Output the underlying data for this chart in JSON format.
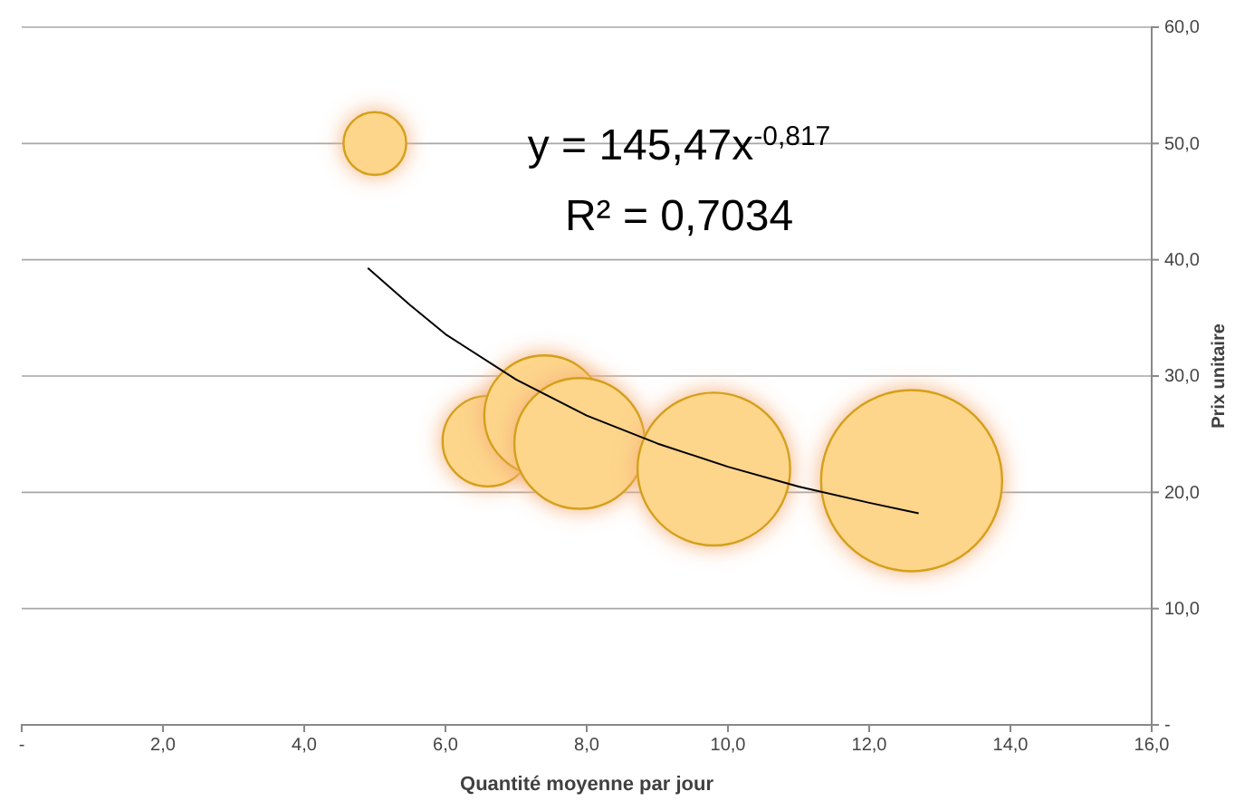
{
  "chart_data": {
    "type": "bubble",
    "xlabel": "Quantité moyenne par jour",
    "ylabel": "Prix unitaire",
    "x": [
      5.0,
      6.6,
      7.4,
      7.9,
      9.8,
      12.6
    ],
    "values": [
      50.0,
      24.4,
      26.6,
      24.2,
      22.0,
      21.0
    ],
    "sizes": [
      0.12,
      0.25,
      0.44,
      0.52,
      0.71,
      1
    ],
    "color": "#fdd58b",
    "series": [
      {
        "type": "line",
        "color": "#000000",
        "marker": "none",
        "x": [
          4.9,
          5.5,
          6,
          7,
          8,
          9,
          10,
          11,
          12,
          12.7
        ],
        "values": [
          39.3,
          36.1,
          33.6,
          29.7,
          26.6,
          24.2,
          22.2,
          20.5,
          19.1,
          18.2
        ]
      }
    ],
    "xlim": [
      0,
      16
    ],
    "xticks": [
      {
        "value": 0,
        "label": "-"
      },
      {
        "value": 2,
        "label": "2,0"
      },
      {
        "value": 4,
        "label": "4,0"
      },
      {
        "value": 6,
        "label": "6,0"
      },
      {
        "value": 8,
        "label": "8,0"
      },
      {
        "value": 10,
        "label": "10,0"
      },
      {
        "value": 12,
        "label": "12,0"
      },
      {
        "value": 14,
        "label": "14,0"
      },
      {
        "value": 16,
        "label": "16,0"
      }
    ],
    "ylim": [
      0,
      60
    ],
    "yticks": [
      {
        "value": 0,
        "label": "-"
      },
      {
        "value": 10,
        "label": "10,0"
      },
      {
        "value": 20,
        "label": "20,0"
      },
      {
        "value": 30,
        "label": "30,0"
      },
      {
        "value": 40,
        "label": "40,0"
      },
      {
        "value": 50,
        "label": "50,0"
      },
      {
        "value": 60,
        "label": "60,0"
      }
    ],
    "grid": "y",
    "marker": "circle",
    "annotations": [
      "y = 145,47x$^{-0,817}$",
      "R² = 0,7034"
    ]
  }
}
